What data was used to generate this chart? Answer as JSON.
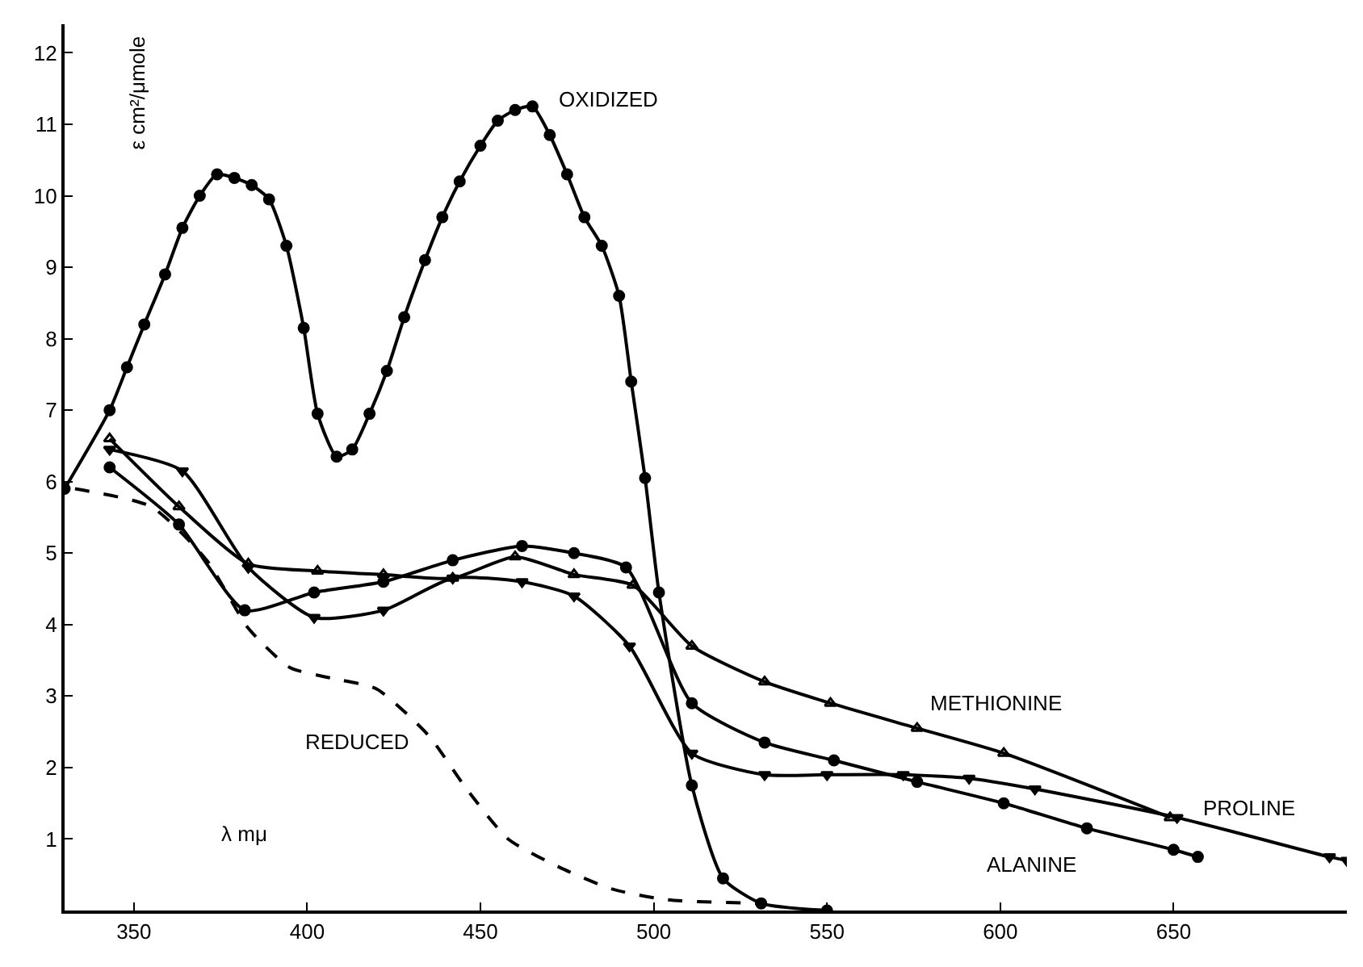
{
  "chart_data": {
    "type": "line",
    "xlabel": "λ mμ",
    "ylabel": "ε cm²/μmole",
    "xlim": [
      330,
      700
    ],
    "ylim": [
      0,
      12.4
    ],
    "xticks": [
      350,
      400,
      450,
      500,
      550,
      600,
      650
    ],
    "yticks": [
      1,
      2,
      3,
      4,
      5,
      6,
      7,
      8,
      9,
      10,
      11,
      12
    ],
    "series": [
      {
        "name": "OXIDIZED",
        "color": "#000000",
        "marker": "circle",
        "line_style": "solid",
        "x": [
          330,
          343,
          348,
          353,
          359,
          364,
          369,
          374,
          379,
          384,
          389,
          394,
          399,
          403,
          408.5,
          413,
          418,
          423,
          428,
          434,
          439,
          444,
          450,
          455,
          460,
          465,
          470,
          475,
          480,
          485,
          490,
          493.5,
          497.5,
          501.5,
          511,
          520,
          531,
          550
        ],
        "values": [
          5.9,
          7.0,
          7.6,
          8.2,
          8.9,
          9.55,
          10.0,
          10.3,
          10.25,
          10.15,
          9.95,
          9.3,
          8.15,
          6.95,
          6.35,
          6.45,
          6.95,
          7.55,
          8.3,
          9.1,
          9.7,
          10.2,
          10.7,
          11.05,
          11.2,
          11.25,
          10.85,
          10.3,
          9.7,
          9.3,
          8.6,
          7.4,
          6.05,
          4.45,
          1.75,
          0.45,
          0.1,
          0
        ]
      },
      {
        "name": "REDUCED",
        "color": "#000000",
        "marker": "none",
        "line_style": "dashed",
        "x": [
          333,
          355,
          371,
          383,
          395,
          407,
          420,
          435,
          446,
          458,
          473,
          488,
          504,
          530
        ],
        "values": [
          5.9,
          5.65,
          4.9,
          3.95,
          3.4,
          3.25,
          3.1,
          2.45,
          1.7,
          1.0,
          0.6,
          0.3,
          0.15,
          0.1
        ]
      },
      {
        "name": "METHIONINE",
        "color": "#000000",
        "marker": "triangle",
        "line_style": "solid",
        "x": [
          343,
          363,
          383,
          403,
          422,
          442,
          460,
          477,
          494,
          511,
          532,
          551,
          576,
          601,
          649
        ],
        "values": [
          6.6,
          5.65,
          4.85,
          4.75,
          4.7,
          4.65,
          4.95,
          4.7,
          4.55,
          3.7,
          3.2,
          2.9,
          2.55,
          2.2,
          1.3
        ]
      },
      {
        "name": "PROLINE",
        "color": "#000000",
        "marker": "triangle",
        "line_style": "solid",
        "x": [
          343,
          364,
          383,
          402,
          422,
          442,
          462,
          477,
          493,
          511,
          532,
          550,
          572,
          591,
          610,
          651,
          695,
          700
        ],
        "values": [
          6.45,
          6.15,
          4.8,
          4.1,
          4.2,
          4.65,
          4.6,
          4.4,
          3.7,
          2.2,
          1.9,
          1.9,
          1.9,
          1.85,
          1.7,
          1.3,
          0.75,
          0.7
        ]
      },
      {
        "name": "ALANINE",
        "color": "#000000",
        "marker": "circle",
        "line_style": "solid",
        "x": [
          343,
          363,
          382,
          402,
          422,
          442,
          462,
          477,
          492,
          511,
          532,
          552,
          576,
          601,
          625,
          650,
          657
        ],
        "values": [
          6.2,
          5.4,
          4.2,
          4.45,
          4.6,
          4.9,
          5.1,
          5.0,
          4.8,
          2.9,
          2.35,
          2.1,
          1.8,
          1.5,
          1.15,
          0.85,
          0.75
        ]
      }
    ]
  }
}
